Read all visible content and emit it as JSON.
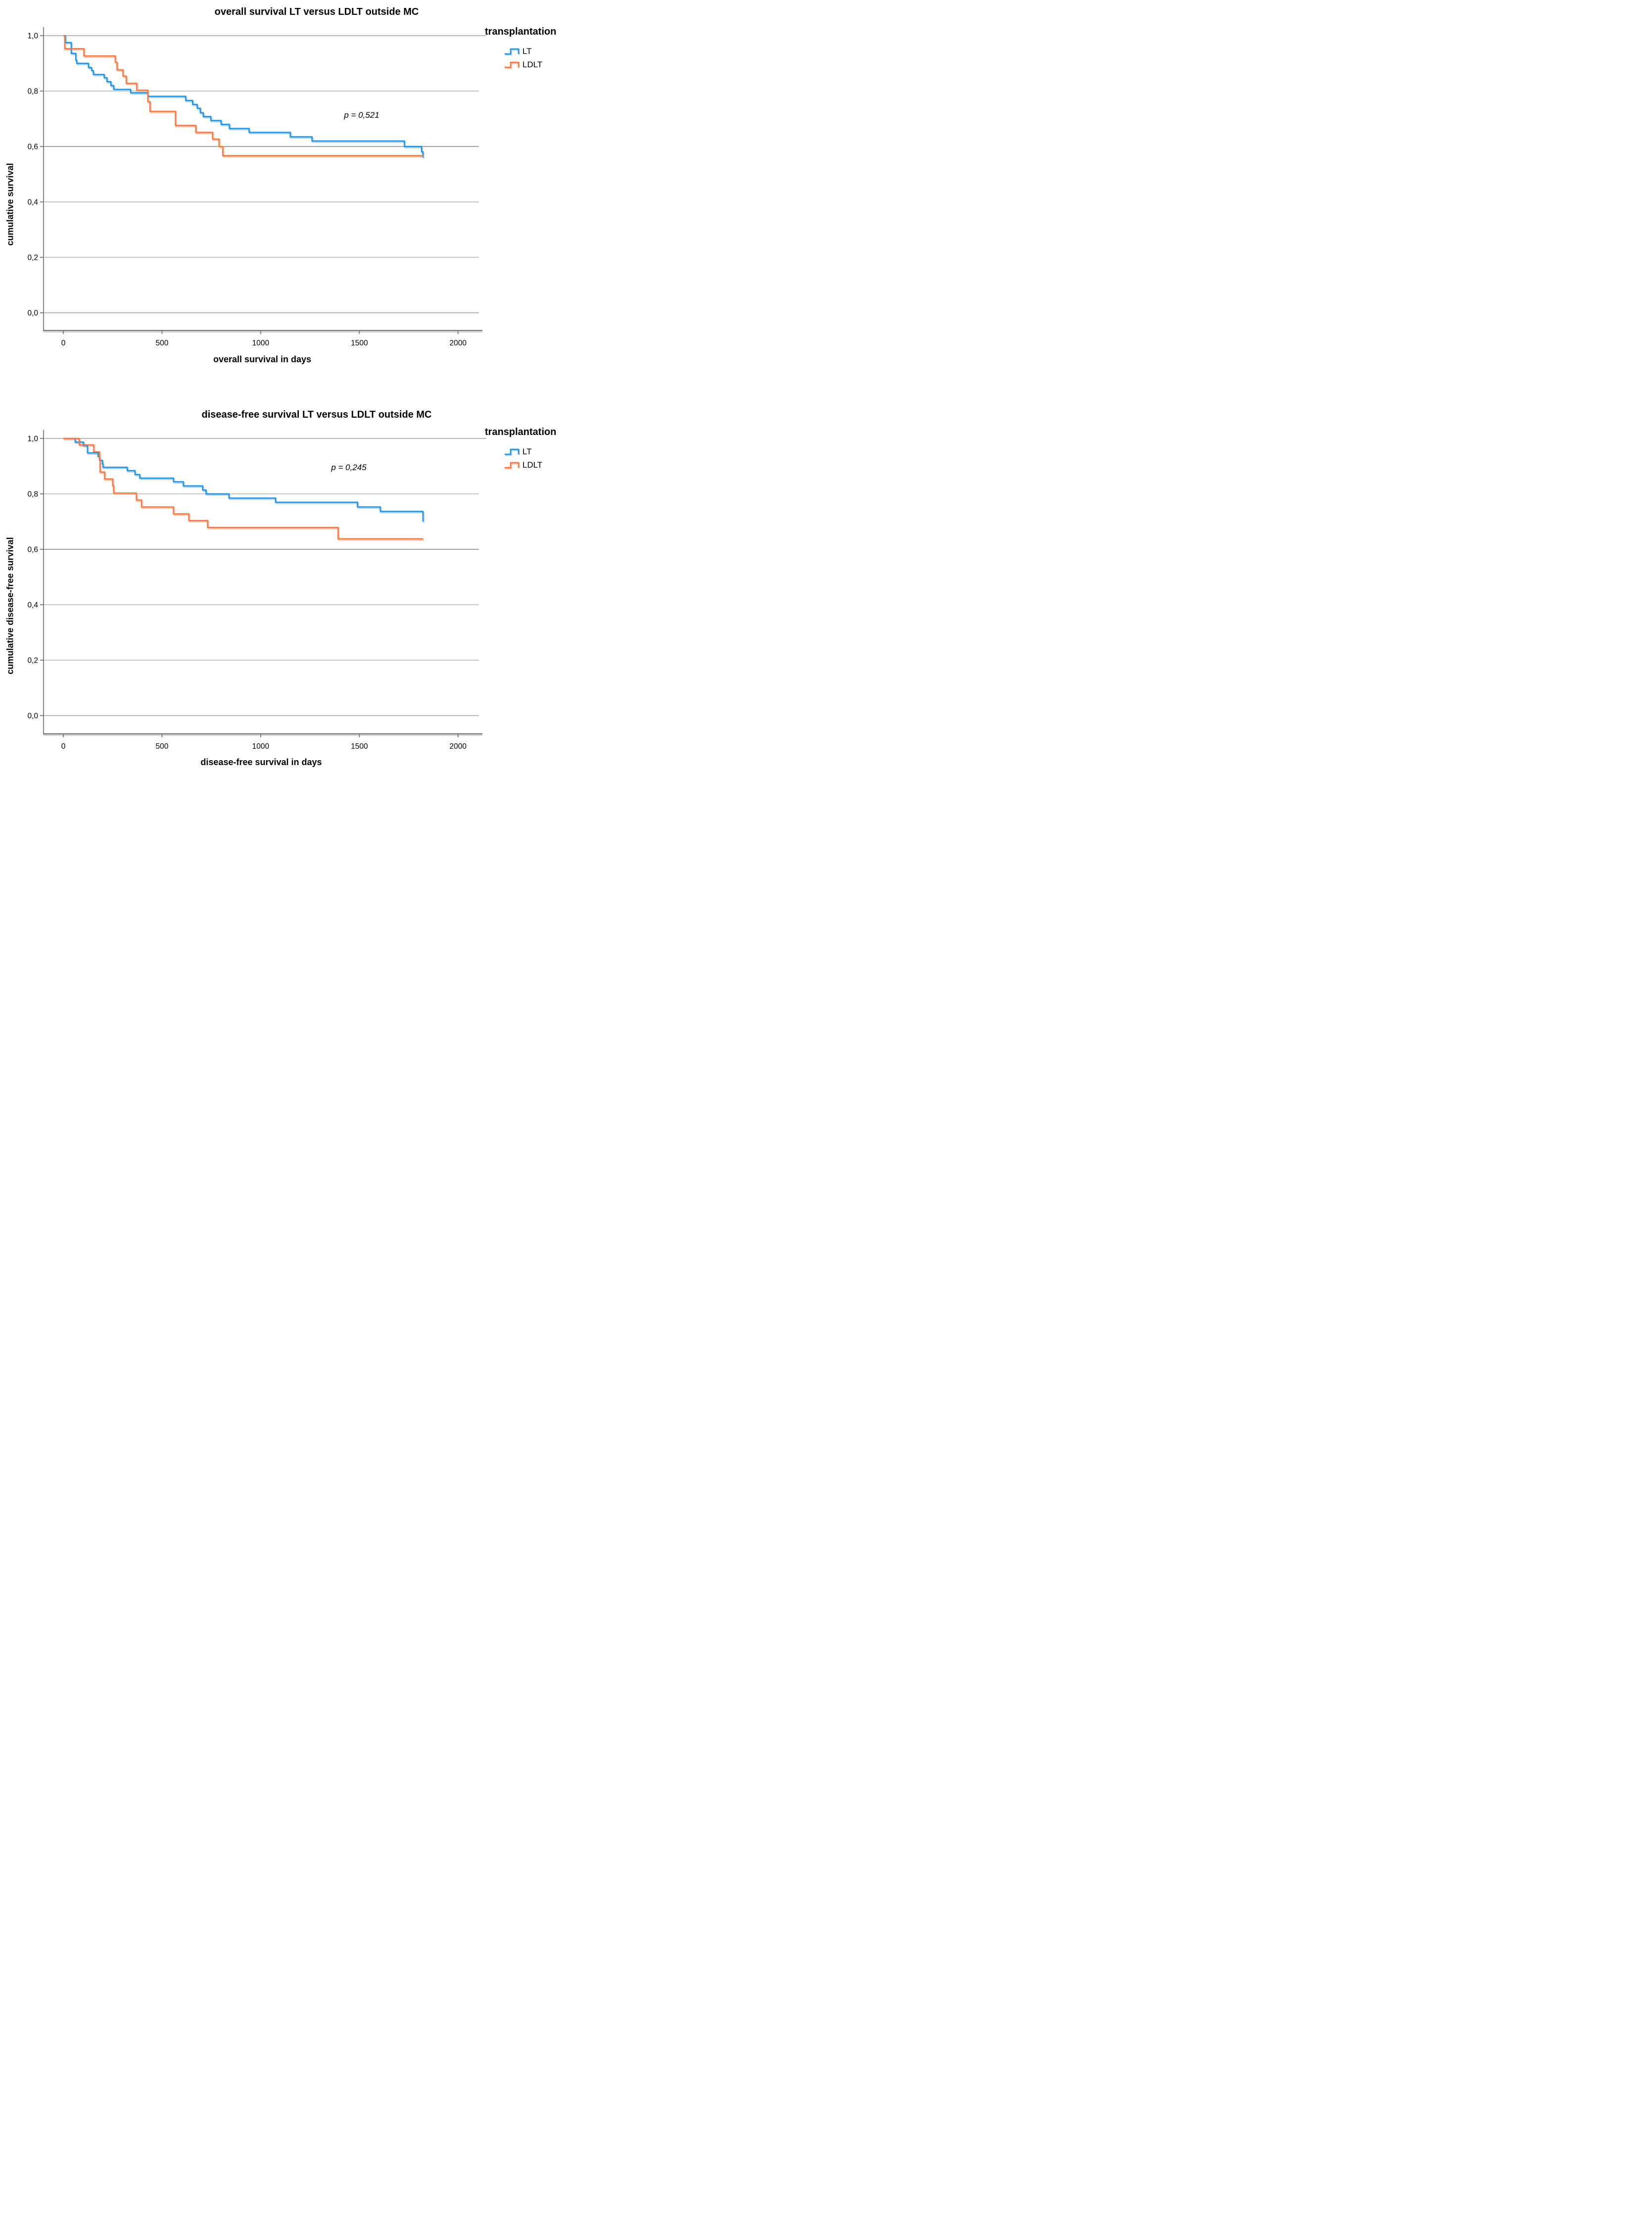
{
  "colors": {
    "lt": "#1F8FE0",
    "lt_halo": "#A5D2F2",
    "ldlt": "#F1764A",
    "ldlt_halo": "#F8BE9B",
    "grid_light": "#CACACA",
    "grid_mid": "#B9B9B9",
    "grid_dark": "#A4A4A4",
    "axis": "#767676",
    "axis_shadow": "#D6D6D6",
    "text": "#000000"
  },
  "chart_data": [
    {
      "type": "line",
      "subtype": "kaplan-meier-step",
      "title": "overall survival LT versus LDLT outside MC",
      "xlabel": "overall survival in days",
      "ylabel": "cumulative survival",
      "p_label": "p = 0,521",
      "legend_title": "transplantation",
      "legend_position": "top-right",
      "grid": true,
      "xlim": [
        0,
        2000
      ],
      "ylim": [
        0.0,
        1.0
      ],
      "x_ticks": [
        {
          "value": 0,
          "label": "0"
        },
        {
          "value": 500,
          "label": "500"
        },
        {
          "value": 1000,
          "label": "1000"
        },
        {
          "value": 1500,
          "label": "1500"
        },
        {
          "value": 2000,
          "label": "2000"
        }
      ],
      "y_ticks": [
        {
          "value": 1.0,
          "label": "1,0"
        },
        {
          "value": 0.8,
          "label": "0,8"
        },
        {
          "value": 0.6,
          "label": "0,6"
        },
        {
          "value": 0.4,
          "label": "0,4"
        },
        {
          "value": 0.2,
          "label": "0,2"
        },
        {
          "value": 0.0,
          "label": "0,0"
        }
      ],
      "start_value": 1.0,
      "end_day": 1823,
      "series": [
        {
          "name": "LT",
          "color_key": "lt",
          "points": [
            [
              10,
              0.975
            ],
            [
              40,
              0.936
            ],
            [
              63,
              0.911
            ],
            [
              68,
              0.9
            ],
            [
              127,
              0.885
            ],
            [
              143,
              0.874
            ],
            [
              152,
              0.86
            ],
            [
              207,
              0.848
            ],
            [
              221,
              0.834
            ],
            [
              241,
              0.82
            ],
            [
              255,
              0.806
            ],
            [
              341,
              0.794
            ],
            [
              428,
              0.781
            ],
            [
              620,
              0.766
            ],
            [
              655,
              0.752
            ],
            [
              678,
              0.738
            ],
            [
              694,
              0.722
            ],
            [
              709,
              0.708
            ],
            [
              747,
              0.694
            ],
            [
              799,
              0.68
            ],
            [
              841,
              0.665
            ],
            [
              941,
              0.651
            ],
            [
              1150,
              0.635
            ],
            [
              1260,
              0.62
            ],
            [
              1728,
              0.6
            ],
            [
              1815,
              0.581
            ],
            [
              1822,
              0.562
            ]
          ]
        },
        {
          "name": "LDLT",
          "color_key": "ldlt",
          "points": [
            [
              7,
              0.953
            ],
            [
              104,
              0.927
            ],
            [
              263,
              0.904
            ],
            [
              272,
              0.877
            ],
            [
              302,
              0.854
            ],
            [
              319,
              0.828
            ],
            [
              372,
              0.803
            ],
            [
              428,
              0.762
            ],
            [
              439,
              0.727
            ],
            [
              568,
              0.676
            ],
            [
              671,
              0.651
            ],
            [
              756,
              0.627
            ],
            [
              789,
              0.6
            ],
            [
              808,
              0.567
            ]
          ]
        }
      ]
    },
    {
      "type": "line",
      "subtype": "kaplan-meier-step",
      "title": "disease-free survival LT versus LDLT outside MC",
      "xlabel": "disease-free survival in days",
      "ylabel": "cumulative disease-free survival",
      "p_label": "p = 0,245",
      "legend_title": "transplantation",
      "legend_position": "top-right",
      "grid": true,
      "xlim": [
        0,
        2000
      ],
      "ylim": [
        0.0,
        1.0
      ],
      "x_ticks": [
        {
          "value": 0,
          "label": "0"
        },
        {
          "value": 500,
          "label": "500"
        },
        {
          "value": 1000,
          "label": "1000"
        },
        {
          "value": 1500,
          "label": "1500"
        },
        {
          "value": 2000,
          "label": "2000"
        }
      ],
      "y_ticks": [
        {
          "value": 1.0,
          "label": "1,0"
        },
        {
          "value": 0.8,
          "label": "0,8"
        },
        {
          "value": 0.6,
          "label": "0,6"
        },
        {
          "value": 0.4,
          "label": "0,4"
        },
        {
          "value": 0.2,
          "label": "0,2"
        },
        {
          "value": 0.0,
          "label": "0,0"
        }
      ],
      "start_value": 1.0,
      "end_day": 1823,
      "series": [
        {
          "name": "LT",
          "color_key": "lt",
          "points": [
            [
              60,
              0.987
            ],
            [
              102,
              0.974
            ],
            [
              122,
              0.948
            ],
            [
              176,
              0.935
            ],
            [
              184,
              0.921
            ],
            [
              198,
              0.908
            ],
            [
              201,
              0.896
            ],
            [
              324,
              0.884
            ],
            [
              363,
              0.87
            ],
            [
              387,
              0.857
            ],
            [
              558,
              0.844
            ],
            [
              608,
              0.829
            ],
            [
              706,
              0.814
            ],
            [
              723,
              0.8
            ],
            [
              839,
              0.785
            ],
            [
              1075,
              0.77
            ],
            [
              1490,
              0.753
            ],
            [
              1606,
              0.737
            ],
            [
              1822,
              0.702
            ]
          ]
        },
        {
          "name": "LDLT",
          "color_key": "ldlt",
          "points": [
            [
              81,
              0.977
            ],
            [
              154,
              0.952
            ],
            [
              183,
              0.926
            ],
            [
              186,
              0.879
            ],
            [
              209,
              0.854
            ],
            [
              250,
              0.829
            ],
            [
              255,
              0.803
            ],
            [
              370,
              0.778
            ],
            [
              396,
              0.753
            ],
            [
              558,
              0.728
            ],
            [
              636,
              0.704
            ],
            [
              731,
              0.679
            ],
            [
              1392,
              0.638
            ]
          ]
        }
      ]
    }
  ]
}
